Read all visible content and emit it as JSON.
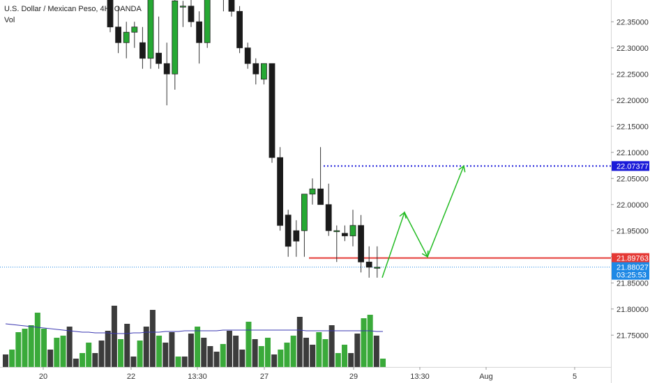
{
  "chart_data": {
    "type": "candlestick",
    "title": "U.S. Dollar / Mexican Peso, 4H, OANDA",
    "subtitle": "Vol",
    "ylim": [
      21.705,
      22.405
    ],
    "yticks": [
      "22.35000",
      "22.30000",
      "22.25000",
      "22.20000",
      "22.15000",
      "22.10000",
      "22.05000",
      "22.00000",
      "21.95000",
      "21.90000",
      "21.85000",
      "21.80000",
      "21.75000"
    ],
    "xticks": [
      "20",
      "22",
      "13:30",
      "27",
      "29",
      "13:30",
      "Aug",
      "5"
    ],
    "price_labels": [
      {
        "text": "22.07377",
        "value": 22.07377,
        "color": "#1a1ad9"
      },
      {
        "text": "21.89763",
        "value": 21.89763,
        "color": "#e53935"
      },
      {
        "text": "21.88027",
        "value": 21.88027,
        "color": "#1e88e5"
      },
      {
        "text": "03:25:53",
        "value": 21.8655,
        "color": "#1e88e5"
      }
    ],
    "candles": [
      {
        "o": 22.43,
        "h": 22.44,
        "l": 22.33,
        "c": 22.34
      },
      {
        "o": 22.34,
        "h": 22.38,
        "l": 22.29,
        "c": 22.31
      },
      {
        "o": 22.31,
        "h": 22.35,
        "l": 22.28,
        "c": 22.33
      },
      {
        "o": 22.33,
        "h": 22.35,
        "l": 22.3,
        "c": 22.34
      },
      {
        "o": 22.31,
        "h": 22.34,
        "l": 22.26,
        "c": 22.28
      },
      {
        "o": 22.28,
        "h": 22.44,
        "l": 22.26,
        "c": 22.43
      },
      {
        "o": 22.29,
        "h": 22.36,
        "l": 22.26,
        "c": 22.27
      },
      {
        "o": 22.27,
        "h": 22.31,
        "l": 22.19,
        "c": 22.25
      },
      {
        "o": 22.25,
        "h": 22.4,
        "l": 22.22,
        "c": 22.39
      },
      {
        "o": 22.38,
        "h": 22.39,
        "l": 22.34,
        "c": 22.38
      },
      {
        "o": 22.38,
        "h": 22.41,
        "l": 22.34,
        "c": 22.35
      },
      {
        "o": 22.35,
        "h": 22.37,
        "l": 22.27,
        "c": 22.31
      },
      {
        "o": 22.31,
        "h": 22.44,
        "l": 22.3,
        "c": 22.43
      },
      {
        "o": 22.43,
        "h": 22.45,
        "l": 22.42,
        "c": 22.43
      },
      {
        "o": 22.42,
        "h": 22.44,
        "l": 22.37,
        "c": 22.43
      },
      {
        "o": 22.44,
        "h": 22.45,
        "l": 22.36,
        "c": 22.37
      },
      {
        "o": 22.37,
        "h": 22.38,
        "l": 22.29,
        "c": 22.3
      },
      {
        "o": 22.3,
        "h": 22.31,
        "l": 22.26,
        "c": 22.27
      },
      {
        "o": 22.27,
        "h": 22.28,
        "l": 22.23,
        "c": 22.25
      },
      {
        "o": 22.24,
        "h": 22.27,
        "l": 22.23,
        "c": 22.27
      },
      {
        "o": 22.27,
        "h": 22.27,
        "l": 22.08,
        "c": 22.09
      },
      {
        "o": 22.09,
        "h": 22.11,
        "l": 21.95,
        "c": 21.96
      },
      {
        "o": 21.98,
        "h": 21.99,
        "l": 21.9,
        "c": 21.92
      },
      {
        "o": 21.95,
        "h": 21.97,
        "l": 21.9,
        "c": 21.93
      },
      {
        "o": 21.95,
        "h": 22.02,
        "l": 21.9,
        "c": 22.02
      },
      {
        "o": 22.02,
        "h": 22.05,
        "l": 22.0,
        "c": 22.03
      },
      {
        "o": 22.03,
        "h": 22.11,
        "l": 22.0,
        "c": 22.0
      },
      {
        "o": 22.0,
        "h": 22.04,
        "l": 21.94,
        "c": 21.95
      },
      {
        "o": 21.95,
        "h": 21.96,
        "l": 21.89,
        "c": 21.95
      },
      {
        "o": 21.945,
        "h": 21.96,
        "l": 21.93,
        "c": 21.94
      },
      {
        "o": 21.94,
        "h": 21.99,
        "l": 21.92,
        "c": 21.96
      },
      {
        "o": 21.96,
        "h": 21.98,
        "l": 21.87,
        "c": 21.89
      },
      {
        "o": 21.89,
        "h": 21.92,
        "l": 21.86,
        "c": 21.88
      },
      {
        "o": 21.88,
        "h": 21.92,
        "l": 21.86,
        "c": 21.88
      }
    ],
    "volume": {
      "ylim": [
        0,
        130
      ],
      "values": [
        18,
        25,
        50,
        55,
        60,
        78,
        55,
        25,
        42,
        45,
        58,
        12,
        20,
        35,
        20,
        38,
        52,
        88,
        40,
        62,
        15,
        38,
        58,
        82,
        45,
        35,
        50,
        15,
        15,
        48,
        58,
        42,
        30,
        22,
        33,
        52,
        45,
        25,
        65,
        40,
        30,
        42,
        18,
        25,
        35,
        45,
        72,
        42,
        32,
        50,
        40,
        60,
        20,
        32,
        20,
        48,
        70,
        75,
        45,
        12
      ],
      "colors": [
        "d",
        "g",
        "g",
        "g",
        "g",
        "g",
        "g",
        "d",
        "g",
        "g",
        "d",
        "d",
        "g",
        "g",
        "d",
        "d",
        "d",
        "d",
        "g",
        "d",
        "d",
        "g",
        "d",
        "d",
        "g",
        "d",
        "d",
        "g",
        "d",
        "d",
        "g",
        "d",
        "d",
        "d",
        "g",
        "d",
        "d",
        "d",
        "g",
        "d",
        "g",
        "g",
        "d",
        "g",
        "g",
        "g",
        "d",
        "d",
        "d",
        "g",
        "g",
        "d",
        "g",
        "g",
        "d",
        "d",
        "g",
        "g",
        "d",
        "g"
      ],
      "ma": [
        62,
        61,
        60,
        59,
        58,
        57,
        56,
        55,
        54,
        53,
        52,
        51,
        50,
        50,
        49,
        49,
        49,
        48,
        48,
        48,
        49,
        49,
        50,
        50,
        50,
        51,
        51,
        51,
        52,
        52,
        52,
        52,
        52,
        52,
        53,
        53,
        53,
        53,
        53,
        53,
        53,
        53,
        53,
        53,
        53,
        53,
        53,
        52,
        52,
        52,
        52,
        52,
        52,
        52,
        52,
        52,
        52,
        52,
        51,
        51
      ]
    },
    "levels": [
      {
        "name": "target-level",
        "value": 22.07377,
        "color": "#1a1ad9",
        "style": "dotted"
      },
      {
        "name": "support-level",
        "value": 21.89763,
        "color": "#e53935",
        "style": "solid"
      },
      {
        "name": "current-price-line",
        "value": 21.88027,
        "color": "#1e88e5",
        "style": "dotted"
      }
    ],
    "projection": {
      "color": "#22bb22",
      "path_values": [
        21.86,
        21.985,
        21.9,
        22.07377
      ]
    },
    "colors": {
      "up": "#26a833",
      "down": "#1a1a1a",
      "volume_up": "#3aaa3a",
      "volume_down": "#3c3c3c",
      "ma": "#3a37b0"
    }
  }
}
